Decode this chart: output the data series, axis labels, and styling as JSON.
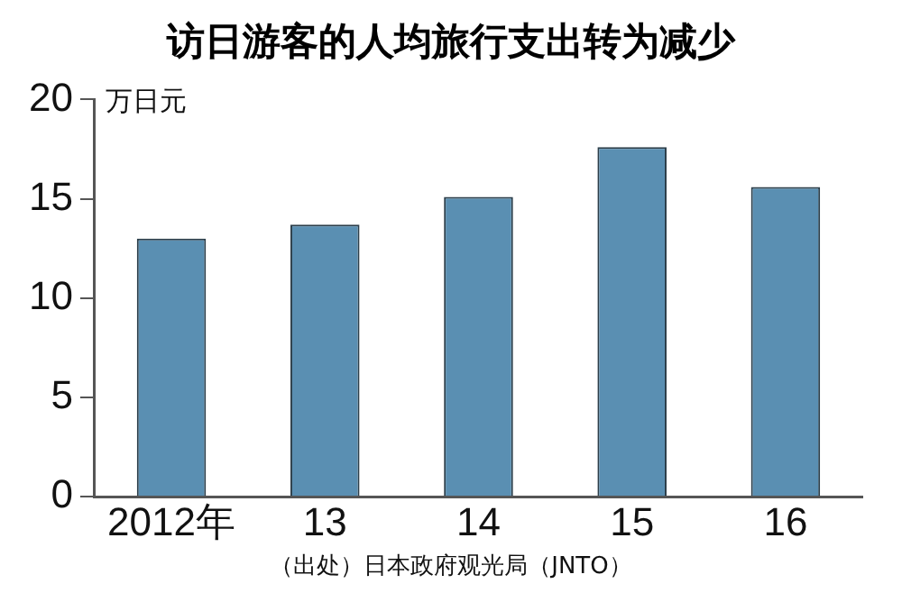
{
  "chart_data": {
    "type": "bar",
    "title": "访日游客的人均旅行支出转为减少",
    "ylabel": "万日元",
    "categories": [
      "2012年",
      "13",
      "14",
      "15",
      "16"
    ],
    "values": [
      13.0,
      13.7,
      15.1,
      17.6,
      15.6
    ],
    "color": "#5a8fb2",
    "ylim": [
      0,
      20
    ],
    "yticks": [
      0,
      5,
      10,
      15,
      20
    ],
    "grid": false,
    "legend": false,
    "annotations": [
      "（出处）日本政府观光局（JNTO）"
    ]
  }
}
